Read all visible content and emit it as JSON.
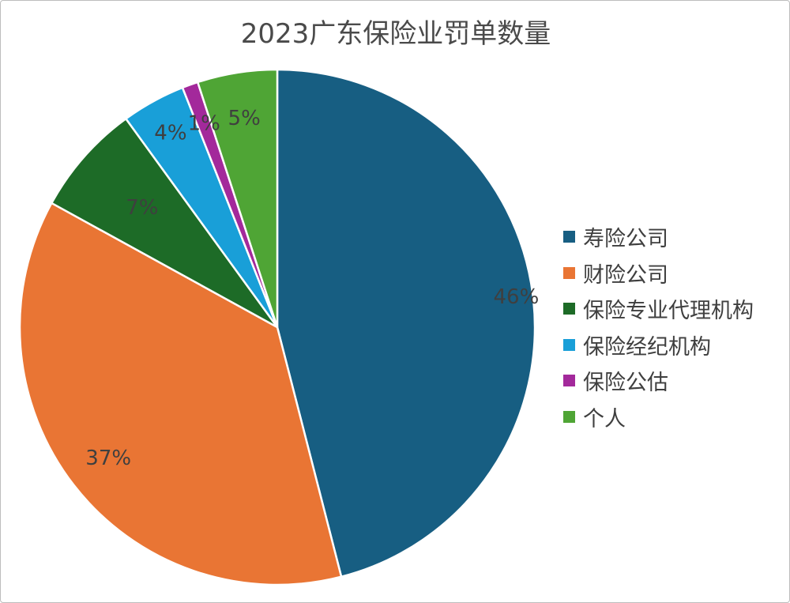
{
  "chart_data": {
    "type": "pie",
    "title": "2023广东保险业罚单数量",
    "legend_position": "right",
    "slices": [
      {
        "name": "寿险公司",
        "value": 46,
        "label": "46%",
        "color": "#175e82"
      },
      {
        "name": "财险公司",
        "value": 37,
        "label": "37%",
        "color": "#e97534"
      },
      {
        "name": "保险专业代理机构",
        "value": 7,
        "label": "7%",
        "color": "#1d6b27"
      },
      {
        "name": "保险经纪机构",
        "value": 4,
        "label": "4%",
        "color": "#199fd8"
      },
      {
        "name": "保险公估",
        "value": 1,
        "label": "1%",
        "color": "#a3299b"
      },
      {
        "name": "个人",
        "value": 5,
        "label": "5%",
        "color": "#4fa535"
      }
    ]
  }
}
